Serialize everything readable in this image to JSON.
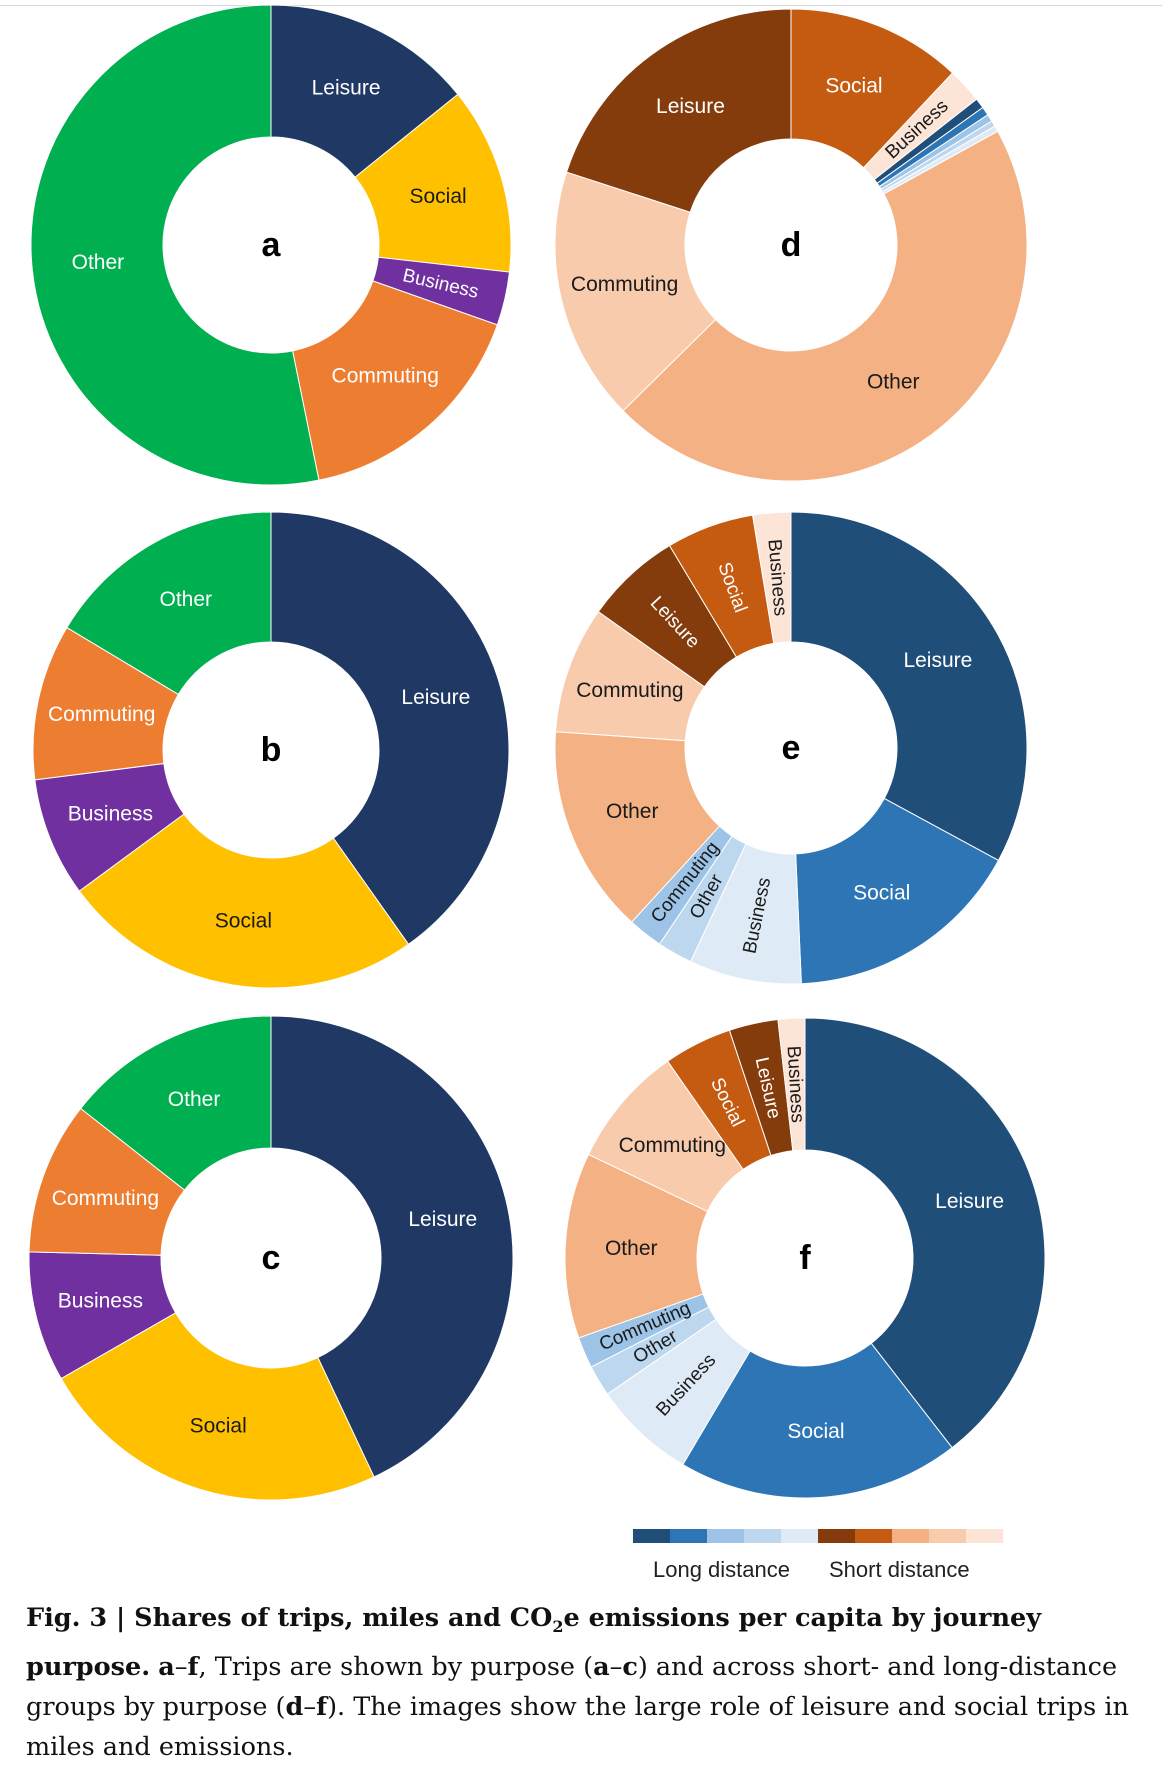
{
  "chart_data": [
    {
      "type": "pie",
      "panel_label": "a",
      "categories": [
        "Leisure",
        "Social",
        "Business",
        "Commuting",
        "Other"
      ],
      "values": [
        14.2,
        12.6,
        3.6,
        16.4,
        53.2
      ],
      "colors": [
        "#203864",
        "#ffc000",
        "#7030a0",
        "#ed7d31",
        "#00b050"
      ],
      "labels": [
        "Leisure",
        "Social",
        "Business",
        "Commuting",
        "Other"
      ]
    },
    {
      "type": "pie",
      "panel_label": "b",
      "categories": [
        "Leisure",
        "Social",
        "Business",
        "Commuting",
        "Other"
      ],
      "values": [
        40.2,
        24.7,
        8.1,
        10.6,
        16.4
      ],
      "colors": [
        "#203864",
        "#ffc000",
        "#7030a0",
        "#ed7d31",
        "#00b050"
      ],
      "labels": [
        "Leisure",
        "Social",
        "Business",
        "Commuting",
        "Other"
      ]
    },
    {
      "type": "pie",
      "panel_label": "c",
      "categories": [
        "Leisure",
        "Social",
        "Business",
        "Commuting",
        "Other"
      ],
      "values": [
        43.0,
        23.7,
        8.7,
        10.2,
        14.4
      ],
      "colors": [
        "#203864",
        "#ffc000",
        "#7030a0",
        "#ed7d31",
        "#00b050"
      ],
      "labels": [
        "Leisure",
        "Social",
        "Business",
        "Commuting",
        "Other"
      ]
    },
    {
      "type": "pie",
      "panel_label": "d",
      "categories": [
        "Social (short)",
        "Business (short)",
        "Leisure (long)",
        "Social (long)",
        "Business (long)",
        "Commuting (long)",
        "Other (long)",
        "Other (short)",
        "Commuting (short)",
        "Leisure (short)"
      ],
      "values": [
        12.0,
        2.4,
        0.7,
        0.6,
        0.5,
        0.4,
        0.4,
        45.6,
        17.4,
        20.0
      ],
      "colors": [
        "#c55a11",
        "#fce4d6",
        "#1f4e79",
        "#2e75b6",
        "#9dc3e6",
        "#bdd7ee",
        "#deebf7",
        "#f4b183",
        "#f8cbad",
        "#843c0c"
      ],
      "labels": [
        "Social",
        "Business",
        "",
        "",
        "",
        "",
        "",
        "Other",
        "Commuting",
        "Leisure"
      ]
    },
    {
      "type": "pie",
      "panel_label": "e",
      "categories": [
        "Leisure (long)",
        "Social (long)",
        "Business (long)",
        "Other (long)",
        "Commuting (long)",
        "Other (short)",
        "Commuting (short)",
        "Leisure (short)",
        "Social (short)",
        "Business (short)"
      ],
      "values": [
        32.9,
        16.4,
        7.7,
        2.4,
        2.4,
        14.3,
        8.7,
        6.6,
        6.0,
        2.6
      ],
      "colors": [
        "#1f4e79",
        "#2e75b6",
        "#deebf7",
        "#bdd7ee",
        "#9dc3e6",
        "#f4b183",
        "#f8cbad",
        "#843c0c",
        "#c55a11",
        "#fce4d6"
      ],
      "labels": [
        "Leisure",
        "Social",
        "Business",
        "Other",
        "Commuting",
        "Other",
        "Commuting",
        "Leisure",
        "Social",
        "Business"
      ]
    },
    {
      "type": "pie",
      "panel_label": "f",
      "categories": [
        "Leisure (long)",
        "Social (long)",
        "Business (long)",
        "Other (long)",
        "Commuting (long)",
        "Other (short)",
        "Commuting (short)",
        "Social (short)",
        "Leisure (short)",
        "Business (short)"
      ],
      "values": [
        39.5,
        19.0,
        6.9,
        2.1,
        2.1,
        12.5,
        8.2,
        4.6,
        3.3,
        1.8
      ],
      "colors": [
        "#1f4e79",
        "#2e75b6",
        "#deebf7",
        "#bdd7ee",
        "#9dc3e6",
        "#f4b183",
        "#f8cbad",
        "#c55a11",
        "#843c0c",
        "#fce4d6"
      ],
      "labels": [
        "Leisure",
        "Social",
        "Business",
        "Other",
        "Commuting",
        "Other",
        "Commuting",
        "Social",
        "Leisure",
        "Business"
      ]
    }
  ],
  "legend": {
    "long_label": "Long distance",
    "short_label": "Short distance",
    "long_colors": [
      "#1f4e79",
      "#2e75b6",
      "#9dc3e6",
      "#bdd7ee",
      "#deebf7"
    ],
    "short_colors": [
      "#843c0c",
      "#c55a11",
      "#f4b183",
      "#f8cbad",
      "#fce4d6"
    ]
  },
  "caption": {
    "fig_label": "Fig. 3 | ",
    "title_bold": "Shares of trips, miles and CO",
    "title_sub": "2",
    "title_bold_2": "e emissions per capita by journey purpose.",
    "panels_ref": "a",
    "dash": "–",
    "panels_ref_2": "f",
    "text_1": ", Trips are shown by purpose (",
    "ref_a": "a",
    "ref_dash": "–",
    "ref_c": "c",
    "text_2": ") and across short- and long-distance groups by purpose (",
    "ref_d": "d",
    "ref_dash_2": "–",
    "ref_f": "f",
    "text_3": "). The images show the large role of leisure and social trips in miles and emissions."
  }
}
